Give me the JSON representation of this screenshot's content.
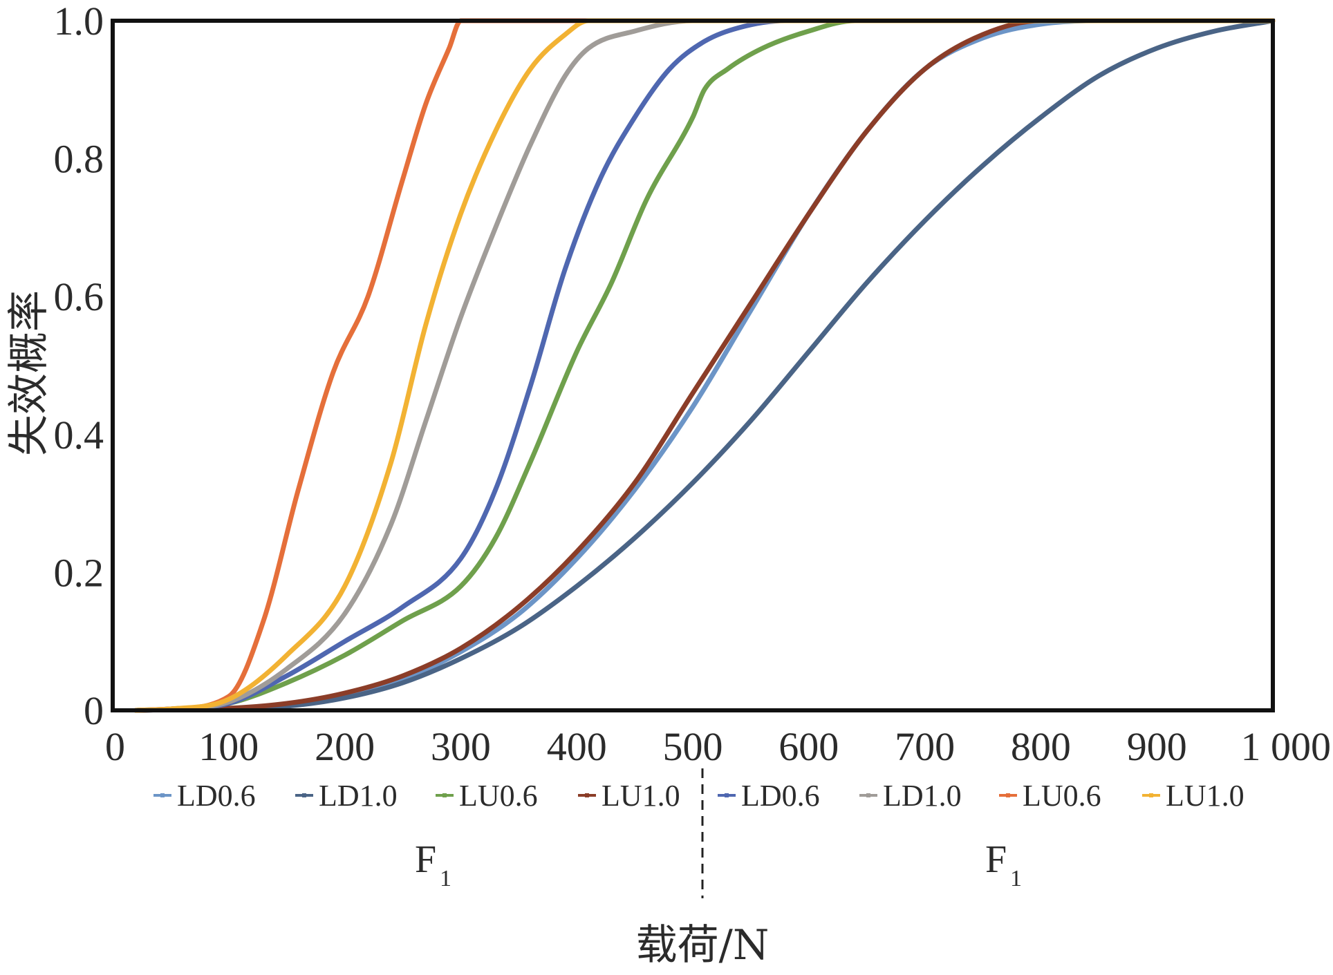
{
  "chart_data": {
    "type": "line",
    "title": "",
    "xlabel": "载荷/N",
    "ylabel": "失效概率",
    "xlim": [
      0,
      1000
    ],
    "ylim": [
      0,
      1.0
    ],
    "x_ticks": [
      "0",
      "100",
      "200",
      "300",
      "400",
      "500",
      "600",
      "700",
      "800",
      "900",
      "1 000"
    ],
    "y_ticks": [
      "0",
      "0.2",
      "0.4",
      "0.6",
      "0.8",
      "1.0"
    ],
    "grid": false,
    "legend_position": "bottom",
    "groups": [
      {
        "label": "F",
        "subscript": "1"
      },
      {
        "label": "F",
        "subscript": "1"
      }
    ],
    "series": [
      {
        "name": "LD0.6",
        "group": 0,
        "color": "#6c95c7",
        "points": [
          [
            20,
            0
          ],
          [
            50,
            0.001
          ],
          [
            100,
            0.003
          ],
          [
            150,
            0.008
          ],
          [
            200,
            0.022
          ],
          [
            250,
            0.045
          ],
          [
            300,
            0.085
          ],
          [
            350,
            0.14
          ],
          [
            400,
            0.22
          ],
          [
            450,
            0.32
          ],
          [
            500,
            0.44
          ],
          [
            550,
            0.58
          ],
          [
            600,
            0.72
          ],
          [
            650,
            0.84
          ],
          [
            700,
            0.93
          ],
          [
            750,
            0.975
          ],
          [
            800,
            0.995
          ],
          [
            850,
            1.0
          ],
          [
            1000,
            1.0
          ]
        ]
      },
      {
        "name": "LD1.0",
        "group": 0,
        "color": "#4a6486",
        "points": [
          [
            20,
            0
          ],
          [
            50,
            0.001
          ],
          [
            100,
            0.002
          ],
          [
            150,
            0.006
          ],
          [
            200,
            0.018
          ],
          [
            250,
            0.04
          ],
          [
            300,
            0.075
          ],
          [
            350,
            0.12
          ],
          [
            400,
            0.18
          ],
          [
            450,
            0.25
          ],
          [
            500,
            0.33
          ],
          [
            550,
            0.42
          ],
          [
            600,
            0.52
          ],
          [
            650,
            0.62
          ],
          [
            700,
            0.71
          ],
          [
            750,
            0.79
          ],
          [
            800,
            0.86
          ],
          [
            850,
            0.92
          ],
          [
            900,
            0.96
          ],
          [
            950,
            0.985
          ],
          [
            1000,
            1.0
          ]
        ]
      },
      {
        "name": "LU0.6",
        "group": 0,
        "color": "#6fa04c",
        "points": [
          [
            20,
            0
          ],
          [
            50,
            0.002
          ],
          [
            100,
            0.01
          ],
          [
            150,
            0.04
          ],
          [
            200,
            0.08
          ],
          [
            250,
            0.13
          ],
          [
            300,
            0.18
          ],
          [
            330,
            0.25
          ],
          [
            360,
            0.36
          ],
          [
            400,
            0.52
          ],
          [
            430,
            0.62
          ],
          [
            460,
            0.74
          ],
          [
            500,
            0.86
          ],
          [
            510,
            0.9
          ],
          [
            530,
            0.93
          ],
          [
            560,
            0.96
          ],
          [
            600,
            0.985
          ],
          [
            640,
            1.0
          ],
          [
            1000,
            1.0
          ]
        ]
      },
      {
        "name": "LU1.0",
        "group": 0,
        "color": "#8b3d28",
        "points": [
          [
            20,
            0
          ],
          [
            50,
            0.001
          ],
          [
            100,
            0.003
          ],
          [
            150,
            0.01
          ],
          [
            200,
            0.025
          ],
          [
            250,
            0.05
          ],
          [
            300,
            0.09
          ],
          [
            350,
            0.15
          ],
          [
            400,
            0.23
          ],
          [
            450,
            0.33
          ],
          [
            500,
            0.46
          ],
          [
            550,
            0.59
          ],
          [
            600,
            0.72
          ],
          [
            650,
            0.84
          ],
          [
            700,
            0.93
          ],
          [
            750,
            0.98
          ],
          [
            800,
            1.0
          ],
          [
            1000,
            1.0
          ]
        ]
      },
      {
        "name": "LD0.6",
        "group": 1,
        "color": "#4f67b0",
        "points": [
          [
            20,
            0
          ],
          [
            50,
            0.002
          ],
          [
            100,
            0.01
          ],
          [
            150,
            0.05
          ],
          [
            200,
            0.1
          ],
          [
            250,
            0.15
          ],
          [
            300,
            0.22
          ],
          [
            330,
            0.32
          ],
          [
            360,
            0.47
          ],
          [
            390,
            0.64
          ],
          [
            420,
            0.77
          ],
          [
            450,
            0.86
          ],
          [
            480,
            0.93
          ],
          [
            510,
            0.97
          ],
          [
            540,
            0.99
          ],
          [
            580,
            1.0
          ],
          [
            1000,
            1.0
          ]
        ]
      },
      {
        "name": "LD1.0",
        "group": 1,
        "color": "#a09c98",
        "points": [
          [
            20,
            0
          ],
          [
            50,
            0.002
          ],
          [
            100,
            0.012
          ],
          [
            150,
            0.06
          ],
          [
            200,
            0.14
          ],
          [
            240,
            0.27
          ],
          [
            270,
            0.42
          ],
          [
            300,
            0.57
          ],
          [
            330,
            0.7
          ],
          [
            360,
            0.82
          ],
          [
            390,
            0.92
          ],
          [
            410,
            0.96
          ],
          [
            450,
            0.985
          ],
          [
            500,
            1.0
          ],
          [
            1000,
            1.0
          ]
        ]
      },
      {
        "name": "LU0.6",
        "group": 1,
        "color": "#e56f3a",
        "points": [
          [
            20,
            0
          ],
          [
            50,
            0.002
          ],
          [
            100,
            0.02
          ],
          [
            130,
            0.13
          ],
          [
            160,
            0.32
          ],
          [
            190,
            0.49
          ],
          [
            220,
            0.6
          ],
          [
            250,
            0.77
          ],
          [
            270,
            0.88
          ],
          [
            290,
            0.96
          ],
          [
            300,
            1.0
          ],
          [
            1000,
            1.0
          ]
        ]
      },
      {
        "name": "LU1.0",
        "group": 1,
        "color": "#f2b233",
        "points": [
          [
            20,
            0
          ],
          [
            50,
            0.002
          ],
          [
            100,
            0.016
          ],
          [
            150,
            0.08
          ],
          [
            200,
            0.18
          ],
          [
            240,
            0.36
          ],
          [
            270,
            0.56
          ],
          [
            300,
            0.72
          ],
          [
            330,
            0.84
          ],
          [
            360,
            0.93
          ],
          [
            390,
            0.98
          ],
          [
            410,
            1.0
          ],
          [
            1000,
            1.0
          ]
        ]
      }
    ]
  }
}
